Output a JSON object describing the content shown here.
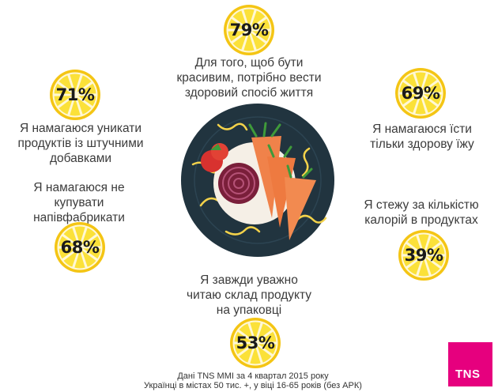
{
  "stats": [
    {
      "id": "healthy-lifestyle",
      "percent": "79%",
      "text": "Для того, щоб бути\nкрасивим, потрібно вести\nздоровий спосіб життя"
    },
    {
      "id": "avoid-additives",
      "percent": "71%",
      "text": "Я намагаюся уникати\nпродуктів із штучними\nдобавками"
    },
    {
      "id": "healthy-food",
      "percent": "69%",
      "text": "Я намагаюся їсти\nтільки здорову їжу"
    },
    {
      "id": "no-semi-finished",
      "percent": "68%",
      "text": "Я намагаюся не\nкупувати\nнапівфабрикати"
    },
    {
      "id": "calories",
      "percent": "39%",
      "text": "Я стежу за кількістю\nкалорій в продуктах"
    },
    {
      "id": "read-label",
      "percent": "53%",
      "text": "Я завжди уважно\nчитаю склад продукту\nна упаковці"
    }
  ],
  "source": "Дані TNS MMI за 4 квартал 2015 року\nУкраїнці в містах 50 тис. +, у віці 16-65 років (без АРК)",
  "logo_text": "TNS",
  "colors": {
    "lemon_fill": "#fbe139",
    "lemon_rim": "#f4c514",
    "plate": "#21343f",
    "carrot": "#f0824a",
    "beet": "#7a1f3a",
    "tomato": "#d8322f",
    "brand": "#e6007e"
  }
}
